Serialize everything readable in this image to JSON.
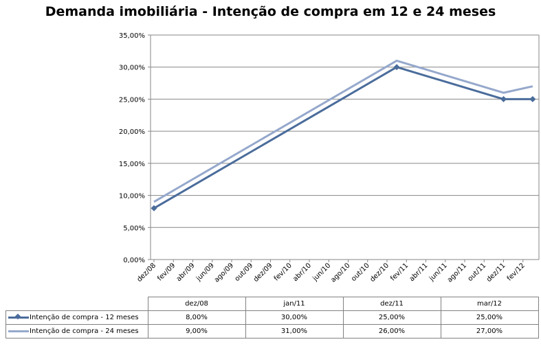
{
  "title": "Demanda imobiliária - Intenção de compra em 12 e 24 meses",
  "chart_data": {
    "type": "line",
    "title": "Demanda imobiliária - Intenção de compra em 12 e 24 meses",
    "xlabel": "",
    "ylabel": "",
    "ylim": [
      0,
      35
    ],
    "yticks": [
      "0,00%",
      "5,00%",
      "10,00%",
      "15,00%",
      "20,00%",
      "25,00%",
      "30,00%",
      "35,00%"
    ],
    "categories": [
      "dez/08",
      "fev/09",
      "abr/09",
      "jun/09",
      "ago/09",
      "out/09",
      "dez/09",
      "fev/10",
      "abr/10",
      "jun/10",
      "ago/10",
      "out/10",
      "dez/10",
      "fev/11",
      "abr/11",
      "jun/11",
      "ago/11",
      "out/11",
      "dez/11",
      "fev/12"
    ],
    "grid": "horizontal",
    "legend": "data-table",
    "series": [
      {
        "name": "Intenção de compra - 12 meses",
        "color": "#4a6c9b",
        "markers": true,
        "points": [
          {
            "x": "dez/08",
            "y": 8
          },
          {
            "x": "jan/11",
            "y": 30
          },
          {
            "x": "dez/11",
            "y": 25
          },
          {
            "x": "mar/12",
            "y": 25
          }
        ]
      },
      {
        "name": "Intenção de compra  - 24 meses",
        "color": "#95a8cc",
        "markers": false,
        "points": [
          {
            "x": "dez/08",
            "y": 9
          },
          {
            "x": "jan/11",
            "y": 31
          },
          {
            "x": "dez/11",
            "y": 26
          },
          {
            "x": "mar/12",
            "y": 27
          }
        ]
      }
    ]
  },
  "table": {
    "headers": [
      "dez/08",
      "jan/11",
      "dez/11",
      "mar/12"
    ],
    "rows": [
      {
        "label": "Intenção de compra - 12 meses",
        "values": [
          "8,00%",
          "30,00%",
          "25,00%",
          "25,00%"
        ]
      },
      {
        "label": "Intenção de compra  - 24 meses",
        "values": [
          "9,00%",
          "31,00%",
          "26,00%",
          "27,00%"
        ]
      }
    ]
  }
}
